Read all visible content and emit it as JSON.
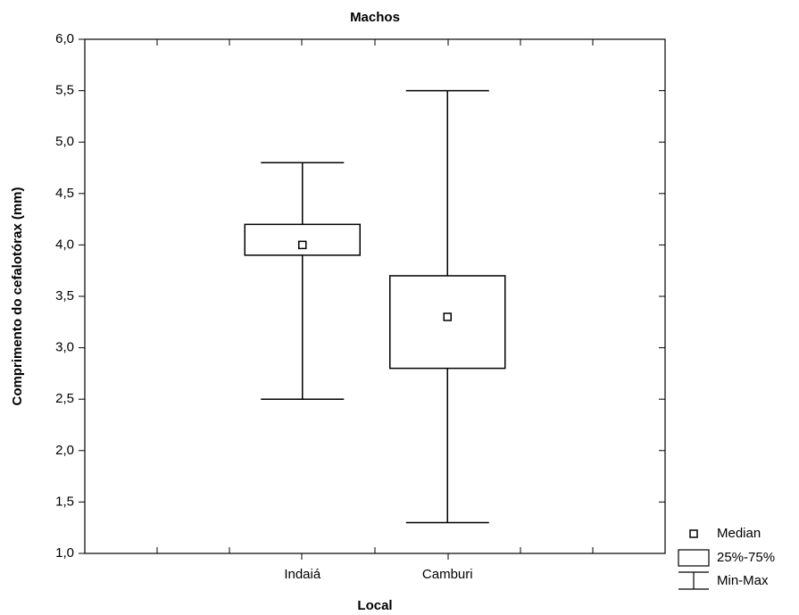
{
  "chart_data": {
    "type": "box",
    "title": "Machos",
    "x_label": "Local",
    "y_label": "Comprimento do cefalotórax (mm)",
    "categories": [
      "Indaiá",
      "Camburi"
    ],
    "min": [
      2.5,
      1.3
    ],
    "q1": [
      3.9,
      2.8
    ],
    "median": [
      4.0,
      3.3
    ],
    "q3": [
      4.2,
      3.7
    ],
    "max": [
      4.8,
      5.5
    ],
    "ylim": [
      1.0,
      6.0
    ],
    "yticks": [
      {
        "value": 1.0,
        "label": "1,0"
      },
      {
        "value": 1.5,
        "label": "1,5"
      },
      {
        "value": 2.0,
        "label": "2,0"
      },
      {
        "value": 2.5,
        "label": "2,5"
      },
      {
        "value": 3.0,
        "label": "3,0"
      },
      {
        "value": 3.5,
        "label": "3,5"
      },
      {
        "value": 4.0,
        "label": "4,0"
      },
      {
        "value": 4.5,
        "label": "4,5"
      },
      {
        "value": 5.0,
        "label": "5,0"
      },
      {
        "value": 5.5,
        "label": "5,5"
      },
      {
        "value": 6.0,
        "label": "6,0"
      }
    ],
    "legend": [
      "Median",
      "25%-75%",
      "Min-Max"
    ]
  }
}
